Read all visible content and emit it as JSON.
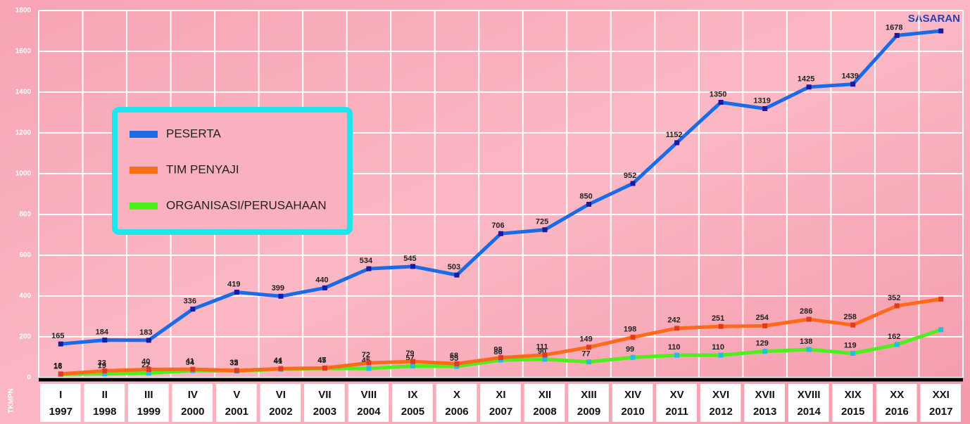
{
  "chart_data": {
    "type": "line",
    "y_label": "TKMPN",
    "annotation": "SASARAN",
    "categories": [
      "I",
      "II",
      "III",
      "IV",
      "V",
      "VI",
      "VII",
      "VIII",
      "IX",
      "X",
      "XI",
      "XII",
      "XIII",
      "XIV",
      "XV",
      "XVI",
      "XVII",
      "XVIII",
      "XIX",
      "XX",
      "XXI"
    ],
    "years": [
      "1997",
      "1998",
      "1999",
      "2000",
      "2001",
      "2002",
      "2003",
      "2004",
      "2005",
      "2006",
      "2007",
      "2008",
      "2009",
      "2010",
      "2011",
      "2012",
      "2013",
      "2014",
      "2015",
      "2016",
      "2017"
    ],
    "ylim": [
      0,
      1800
    ],
    "yticks": [
      0,
      200,
      400,
      600,
      800,
      1000,
      1200,
      1400,
      1600,
      1800
    ],
    "grid": true,
    "series": [
      {
        "name": "PESERTA",
        "color": "#1a6be8",
        "marker": "#1a1aa0",
        "values": [
          165,
          184,
          183,
          336,
          419,
          399,
          440,
          534,
          545,
          503,
          706,
          725,
          850,
          952,
          1152,
          1350,
          1319,
          1425,
          1439,
          1678,
          1700
        ],
        "value_labels": [
          "165",
          "184",
          "183",
          "336",
          "419",
          "399",
          "440",
          "534",
          "545",
          "503",
          "706",
          "725",
          "850",
          "952",
          "1152",
          "1350",
          "1319",
          "1425",
          "1439",
          "1678",
          null
        ]
      },
      {
        "name": "TIM PENYAJI",
        "color": "#ff6a1a",
        "marker": "#e03a20",
        "values": [
          18,
          33,
          40,
          41,
          35,
          44,
          47,
          72,
          79,
          68,
          98,
          111,
          149,
          198,
          242,
          251,
          254,
          286,
          258,
          352,
          385
        ],
        "value_labels": [
          "18",
          "33",
          "40",
          "41",
          "35",
          "44",
          "47",
          "72",
          "79",
          "68",
          "98",
          "111",
          "149",
          "198",
          "242",
          "251",
          "254",
          "286",
          "258",
          "352",
          null
        ]
      },
      {
        "name": "ORGANISASI/PERUSAHAAN",
        "color": "#4cf01c",
        "marker": "#20c0e0",
        "values": [
          16,
          19,
          22,
          34,
          32,
          41,
          45,
          45,
          57,
          55,
          86,
          90,
          77,
          99,
          110,
          110,
          129,
          138,
          119,
          162,
          235
        ],
        "value_labels": [
          "16",
          "19",
          "22",
          "34",
          "32",
          "41",
          "45",
          "45",
          "57",
          "55",
          "86",
          "90",
          "77",
          "99",
          "110",
          "110",
          "129",
          "138",
          "119",
          "162",
          null
        ]
      }
    ]
  }
}
